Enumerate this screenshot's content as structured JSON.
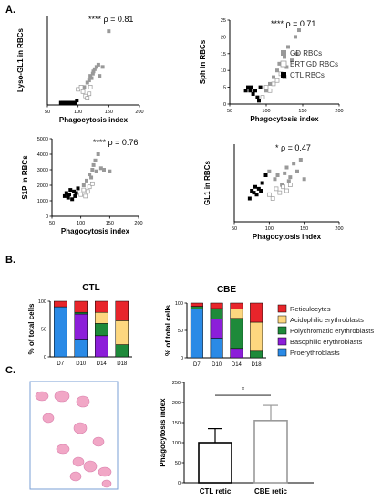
{
  "panel_labels": {
    "a": "A.",
    "b": "B.",
    "c": "C."
  },
  "chart_data": [
    {
      "type": "scatter",
      "xlabel": "Phagocytosis index",
      "ylabel": "Lyso-GL1 in RBCs",
      "annotation": "**** ρ = 0.81",
      "xlim": [
        50,
        200
      ],
      "xticks": [
        50,
        100,
        150,
        200
      ],
      "ylim": [
        0,
        200
      ],
      "yticks": [],
      "series": [
        {
          "name": "GD RBCs",
          "x": [
            110,
            115,
            118,
            120,
            122,
            124,
            125,
            127,
            130,
            133,
            135,
            140,
            150
          ],
          "y": [
            40,
            50,
            55,
            65,
            60,
            70,
            75,
            80,
            85,
            90,
            65,
            85,
            165
          ]
        },
        {
          "name": "ERT GD RBCs",
          "x": [
            100,
            105,
            108,
            112,
            115,
            118,
            120
          ],
          "y": [
            35,
            40,
            30,
            20,
            15,
            25,
            40
          ]
        },
        {
          "name": "CTL RBCs",
          "x": [
            72,
            75,
            78,
            80,
            82,
            85,
            88,
            90,
            92,
            95,
            98
          ],
          "y": [
            5,
            5,
            5,
            5,
            5,
            5,
            5,
            5,
            5,
            5,
            10
          ]
        }
      ]
    },
    {
      "type": "scatter",
      "xlabel": "Phagocytosis index",
      "ylabel": "Sph in RBCs",
      "annotation": "**** ρ = 0.71",
      "xlim": [
        50,
        200
      ],
      "xticks": [
        50,
        100,
        150,
        200
      ],
      "ylim": [
        0,
        25
      ],
      "yticks": [
        0,
        5,
        10,
        15,
        20,
        25
      ],
      "series": [
        {
          "name": "GD RBCs",
          "x": [
            100,
            105,
            110,
            115,
            118,
            120,
            125,
            128,
            130,
            135,
            140,
            142,
            145
          ],
          "y": [
            4,
            6,
            8,
            10,
            12,
            9,
            14,
            11,
            17,
            13,
            20,
            15,
            22
          ]
        },
        {
          "name": "ERT GD RBCs",
          "x": [
            95,
            100,
            105,
            110,
            115,
            120,
            125
          ],
          "y": [
            2,
            5,
            4,
            6,
            7,
            9,
            8
          ]
        },
        {
          "name": "CTL RBCs",
          "x": [
            72,
            75,
            78,
            80,
            82,
            85,
            88,
            90,
            92
          ],
          "y": [
            4,
            5,
            4,
            5,
            3,
            4,
            2,
            1,
            5
          ]
        }
      ]
    },
    {
      "type": "scatter",
      "xlabel": "Phagocytosis index",
      "ylabel": "S1P in RBCs",
      "annotation": "**** ρ = 0.76",
      "xlim": [
        50,
        200
      ],
      "xticks": [
        50,
        100,
        150,
        200
      ],
      "ylim": [
        0,
        5000
      ],
      "yticks": [
        0,
        1000,
        2000,
        3000,
        4000,
        5000
      ],
      "series": [
        {
          "name": "GD RBCs",
          "x": [
            105,
            110,
            115,
            118,
            120,
            122,
            125,
            127,
            130,
            135,
            140,
            150
          ],
          "y": [
            2000,
            2300,
            2700,
            2500,
            3000,
            3300,
            3600,
            2900,
            4000,
            3100,
            3000,
            2900
          ]
        },
        {
          "name": "ERT GD RBCs",
          "x": [
            100,
            105,
            108,
            112,
            115,
            120
          ],
          "y": [
            1400,
            1700,
            1300,
            1600,
            1900,
            2100
          ]
        },
        {
          "name": "CTL RBCs",
          "x": [
            72,
            75,
            78,
            80,
            82,
            85,
            88,
            90,
            92,
            95
          ],
          "y": [
            1300,
            1500,
            1200,
            1400,
            1700,
            1100,
            1600,
            1300,
            1500,
            1800
          ]
        }
      ]
    },
    {
      "type": "scatter",
      "xlabel": "Phagocytosis index",
      "ylabel": "GL1 in RBCs",
      "annotation": "* ρ = 0.47",
      "xlim": [
        50,
        200
      ],
      "xticks": [
        50,
        100,
        150,
        200
      ],
      "ylim": [
        0,
        200
      ],
      "yticks": [],
      "series": [
        {
          "name": "GD RBCs",
          "x": [
            100,
            108,
            112,
            118,
            122,
            125,
            128,
            130,
            135,
            140,
            145,
            150
          ],
          "y": [
            130,
            110,
            120,
            95,
            125,
            140,
            105,
            115,
            150,
            130,
            160,
            110
          ]
        },
        {
          "name": "ERT GD RBCs",
          "x": [
            100,
            105,
            110,
            115,
            120,
            125,
            130
          ],
          "y": [
            70,
            60,
            85,
            75,
            90,
            80,
            95
          ]
        },
        {
          "name": "CTL RBCs",
          "x": [
            72,
            75,
            78,
            80,
            82,
            85,
            88,
            90,
            95
          ],
          "y": [
            60,
            80,
            75,
            90,
            70,
            85,
            80,
            100,
            120
          ]
        }
      ]
    },
    {
      "type": "bar",
      "stacked": true,
      "title": "CTL",
      "ylabel": "% of total cells",
      "ylim": [
        0,
        100
      ],
      "yticks": [
        0,
        50,
        100
      ],
      "categories": [
        "D7",
        "D10",
        "D14",
        "D18"
      ],
      "series": [
        {
          "name": "Proerythroblasts",
          "values": [
            90,
            32,
            0,
            0
          ]
        },
        {
          "name": "Basophilic erythroblasts",
          "values": [
            0,
            45,
            38,
            0
          ]
        },
        {
          "name": "Polychromatic erythroblasts",
          "values": [
            0,
            3,
            22,
            22
          ]
        },
        {
          "name": "Acidophilic erythroblasts",
          "values": [
            0,
            0,
            20,
            43
          ]
        },
        {
          "name": "Reticulocytes",
          "values": [
            10,
            20,
            20,
            35
          ]
        }
      ]
    },
    {
      "type": "bar",
      "stacked": true,
      "title": "CBE",
      "ylabel": "% of total cells",
      "ylim": [
        0,
        100
      ],
      "yticks": [
        0,
        50,
        100
      ],
      "categories": [
        "D7",
        "D10",
        "D14",
        "D18"
      ],
      "series": [
        {
          "name": "Proerythroblasts",
          "values": [
            89,
            36,
            0,
            0
          ]
        },
        {
          "name": "Basophilic erythroblasts",
          "values": [
            0,
            35,
            17,
            0
          ]
        },
        {
          "name": "Polychromatic erythroblasts",
          "values": [
            5,
            19,
            55,
            12
          ]
        },
        {
          "name": "Acidophilic erythroblasts",
          "values": [
            0,
            0,
            17,
            53
          ]
        },
        {
          "name": "Reticulocytes",
          "values": [
            6,
            10,
            11,
            35
          ]
        }
      ]
    },
    {
      "type": "bar",
      "ylabel": "Phagocytosis index",
      "ylim": [
        0,
        250
      ],
      "yticks": [
        0,
        50,
        100,
        150,
        200,
        250
      ],
      "categories": [
        "CTL retic",
        "CBE retic"
      ],
      "values": [
        100,
        155
      ],
      "errors": [
        35,
        38
      ],
      "annotation": "*"
    }
  ],
  "legend_a": [
    {
      "label": "GD RBCs",
      "color": "#999999",
      "marker": "filled-square"
    },
    {
      "label": "ERT GD RBCs",
      "color": "#999999",
      "marker": "open-square"
    },
    {
      "label": "CTL RBCs",
      "color": "#000000",
      "marker": "filled-square"
    }
  ],
  "legend_b": [
    {
      "label": "Reticulocytes",
      "color": "#e8252b"
    },
    {
      "label": "Acidophilic erythroblasts",
      "color": "#fdd77f"
    },
    {
      "label": "Polychromatic erythroblasts",
      "color": "#1e8a3a"
    },
    {
      "label": "Basophilic erythroblasts",
      "color": "#8c1ed9"
    },
    {
      "label": "Proerythroblasts",
      "color": "#2a8ae6"
    }
  ],
  "colors": {
    "gd": "#999999",
    "ctl": "#000000",
    "reticulocytes": "#e8252b",
    "acidophilic": "#fdd77f",
    "polychromatic": "#1e8a3a",
    "basophilic": "#8c1ed9",
    "proerythroblasts": "#2a8ae6",
    "micrograph_frame": "#7a9fd6",
    "cell_stain": "#f1a7c6"
  },
  "micrograph_icon": "pink-cell-micrograph"
}
